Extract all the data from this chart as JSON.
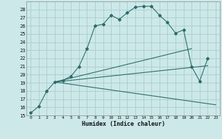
{
  "xlabel": "Humidex (Indice chaleur)",
  "ylabel": "",
  "bg_color": "#cce8e8",
  "grid_color": "#aacccc",
  "line_color": "#2d6b6b",
  "xlim": [
    -0.5,
    23.5
  ],
  "ylim": [
    15,
    29
  ],
  "yticks": [
    15,
    16,
    17,
    18,
    19,
    20,
    21,
    22,
    23,
    24,
    25,
    26,
    27,
    28
  ],
  "xticks": [
    0,
    1,
    2,
    3,
    4,
    5,
    6,
    7,
    8,
    9,
    10,
    11,
    12,
    13,
    14,
    15,
    16,
    17,
    18,
    19,
    20,
    21,
    22,
    23
  ],
  "series": [
    {
      "x": [
        0,
        1,
        2,
        3,
        4,
        5,
        6,
        7,
        8,
        9,
        10,
        11,
        12,
        13,
        14,
        15,
        16,
        17,
        18,
        19,
        20,
        21,
        22
      ],
      "y": [
        15.3,
        16.1,
        18.0,
        19.1,
        19.3,
        19.8,
        21.0,
        23.2,
        26.0,
        26.2,
        27.3,
        26.8,
        27.6,
        28.3,
        28.4,
        28.4,
        27.3,
        26.4,
        25.1,
        25.5,
        21.0,
        19.2,
        22.0
      ]
    },
    {
      "x": [
        3,
        23
      ],
      "y": [
        19.1,
        16.3
      ]
    },
    {
      "x": [
        3,
        20
      ],
      "y": [
        19.1,
        23.2
      ]
    },
    {
      "x": [
        3,
        22
      ],
      "y": [
        19.1,
        21.1
      ]
    }
  ]
}
